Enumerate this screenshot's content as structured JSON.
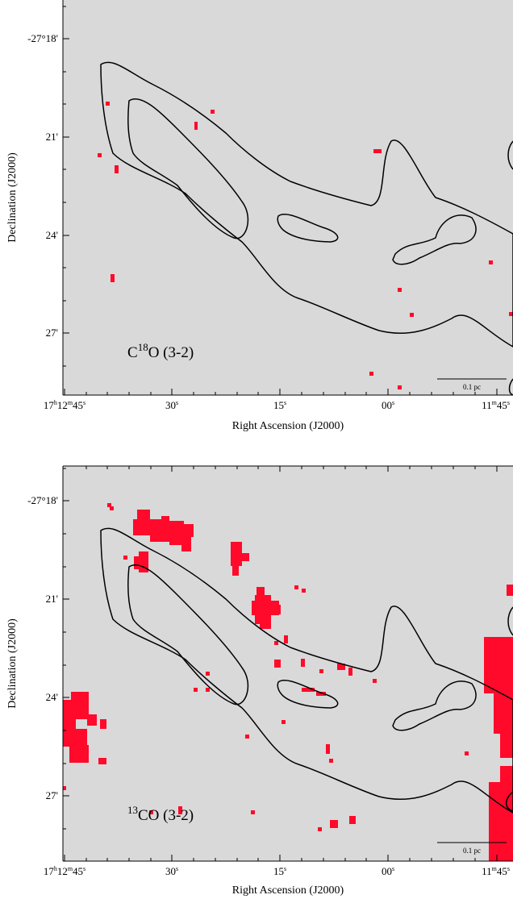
{
  "panels": [
    {
      "id": "c18o",
      "label": {
        "pre": "C",
        "sup": "18",
        "post": "O (3-2)"
      },
      "dec_ticks": [
        "-27°18'",
        "21'",
        "24'",
        "27'"
      ],
      "ra_ticks": [
        {
          "h": "17",
          "hs": "h",
          "m": "12",
          "ms": "m",
          "s": "45",
          "ss": "s"
        },
        {
          "s": "30",
          "ss": "s"
        },
        {
          "s": "15",
          "ss": "s"
        },
        {
          "s": "00",
          "ss": "s"
        },
        {
          "m": "11",
          "ms": "m",
          "s": "45",
          "ss": "s"
        }
      ],
      "xlabel": "Right Ascension (J2000)",
      "ylabel": "Declination (J2000)",
      "scalebar": "0.1 pc"
    },
    {
      "id": "13co",
      "label": {
        "sup": "13",
        "post": "CO (3-2)"
      },
      "dec_ticks": [
        "-27°18'",
        "21'",
        "24'",
        "27'"
      ],
      "ra_ticks": [
        {
          "h": "17",
          "hs": "h",
          "m": "12",
          "ms": "m",
          "s": "45",
          "ss": "s"
        },
        {
          "s": "30",
          "ss": "s"
        },
        {
          "s": "15",
          "ss": "s"
        },
        {
          "s": "00",
          "ss": "s"
        },
        {
          "m": "11",
          "ms": "m",
          "s": "45",
          "ss": "s"
        }
      ],
      "xlabel": "Right Ascension (J2000)",
      "ylabel": "Declination (J2000)",
      "scalebar": "0.1 pc"
    }
  ],
  "colors": {
    "background": "#d9d9d9",
    "emission": "#ff0a2b",
    "contour": "#000000"
  }
}
